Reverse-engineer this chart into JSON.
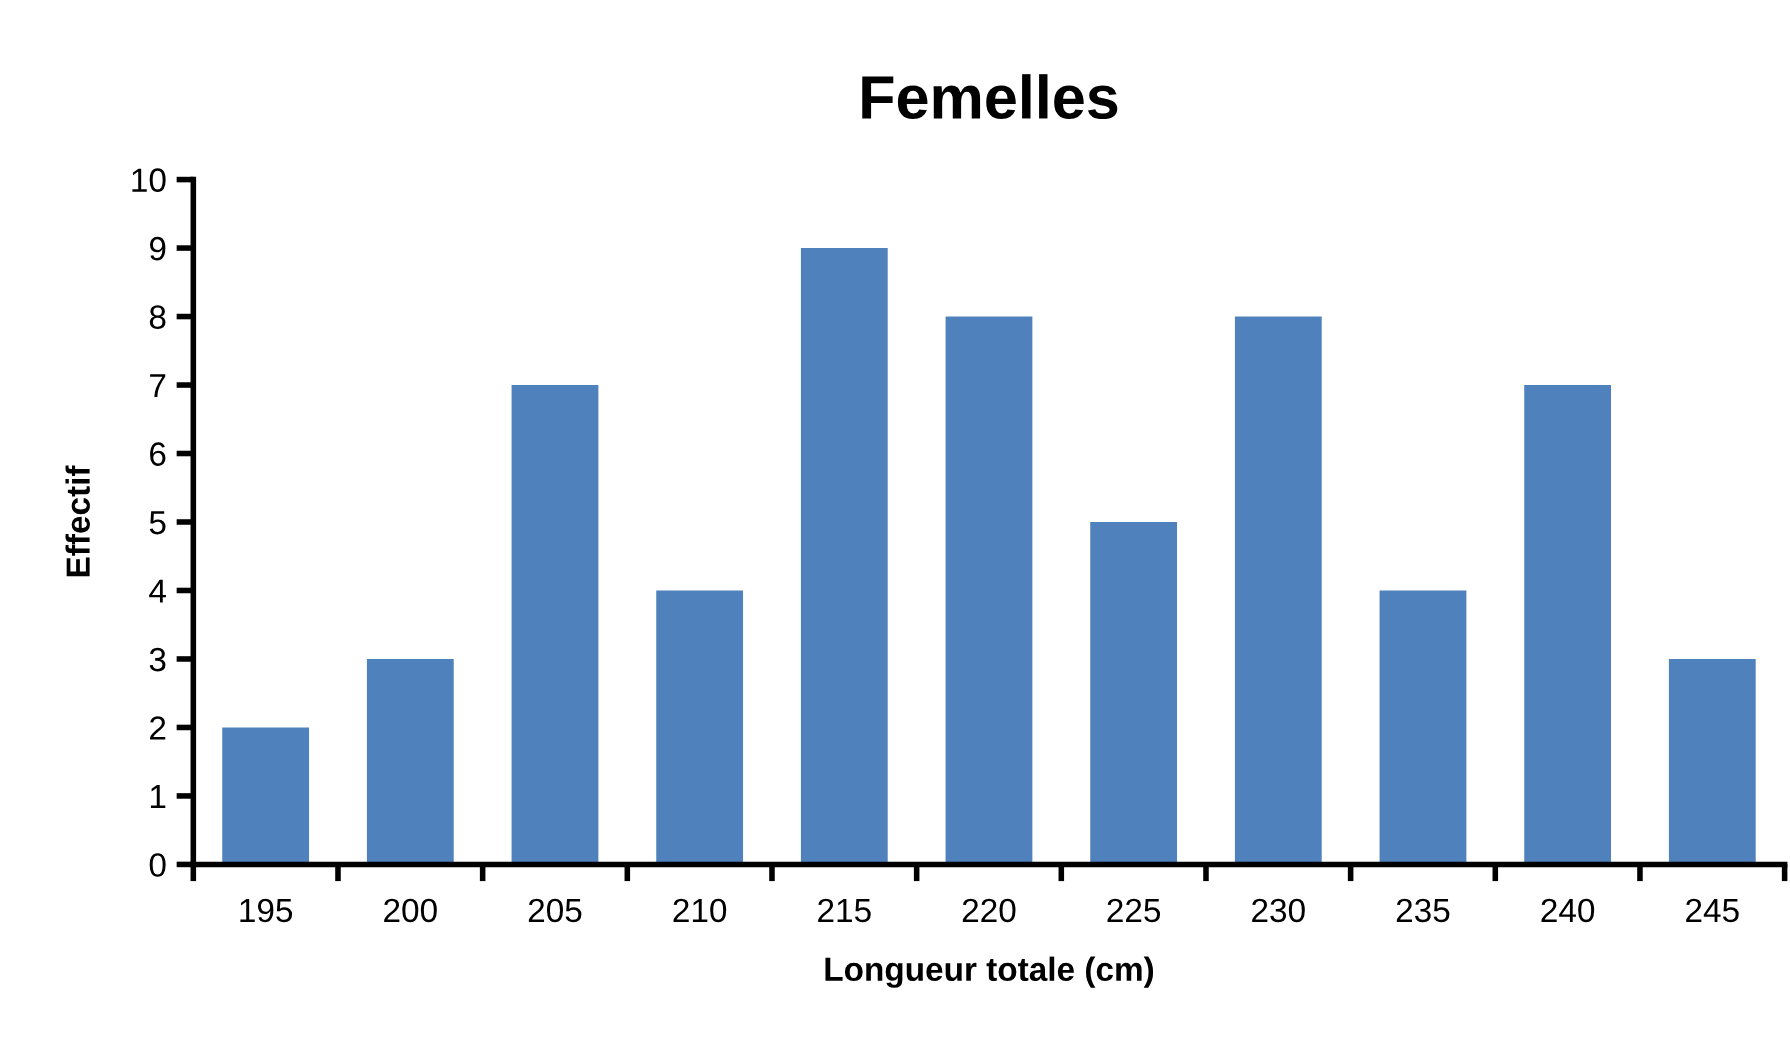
{
  "chart_data": {
    "type": "bar",
    "title": "Femelles",
    "xlabel": "Longueur totale (cm)",
    "ylabel": "Effectif",
    "categories": [
      "195",
      "200",
      "205",
      "210",
      "215",
      "220",
      "225",
      "230",
      "235",
      "240",
      "245"
    ],
    "values": [
      2,
      3,
      7,
      4,
      9,
      8,
      5,
      8,
      4,
      7,
      3
    ],
    "color": "#4f81bd",
    "ylim": [
      0,
      10
    ],
    "yticks": [
      0,
      1,
      2,
      3,
      4,
      5,
      6,
      7,
      8,
      9,
      10
    ],
    "grid": false,
    "legend": false
  }
}
